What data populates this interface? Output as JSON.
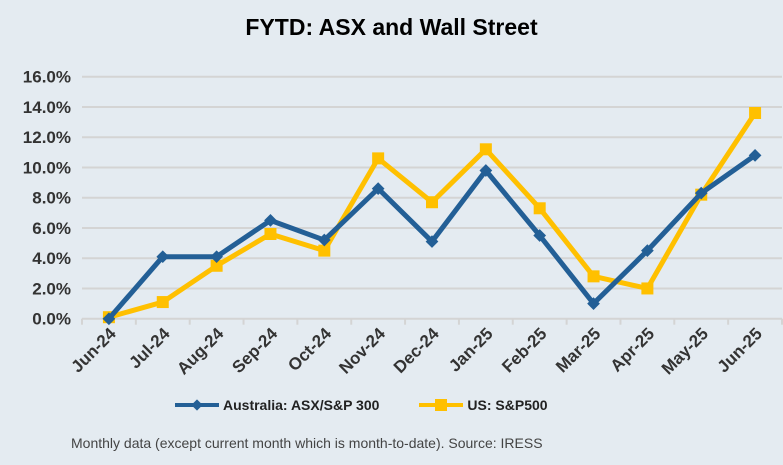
{
  "chart_data": {
    "type": "line",
    "title": "FYTD: ASX and Wall Street",
    "categories": [
      "Jun-24",
      "Jul-24",
      "Aug-24",
      "Sep-24",
      "Oct-24",
      "Nov-24",
      "Dec-24",
      "Jan-25",
      "Feb-25",
      "Mar-25",
      "Apr-25",
      "May-25",
      "Jun-25"
    ],
    "series": [
      {
        "name": "Australia: ASX/S&P 300",
        "color": "#235f96",
        "marker": "diamond",
        "values": [
          0.0,
          4.1,
          4.1,
          6.5,
          5.2,
          8.6,
          5.1,
          9.8,
          5.5,
          1.0,
          4.5,
          8.3,
          10.8
        ]
      },
      {
        "name": "US: S&P500",
        "color": "#ffc000",
        "marker": "square",
        "values": [
          0.1,
          1.1,
          3.5,
          5.6,
          4.5,
          10.6,
          7.7,
          11.2,
          7.3,
          2.8,
          2.0,
          8.2,
          13.6
        ]
      }
    ],
    "ylim": [
      0,
      16
    ],
    "yticks": [
      "0.0%",
      "2.0%",
      "4.0%",
      "6.0%",
      "8.0%",
      "10.0%",
      "12.0%",
      "14.0%",
      "16.0%"
    ],
    "grid": true,
    "legend": "bottom",
    "xlabel": "",
    "ylabel": ""
  },
  "footnote": "Monthly data (except current month which is month-to-date).  Source: IRESS"
}
